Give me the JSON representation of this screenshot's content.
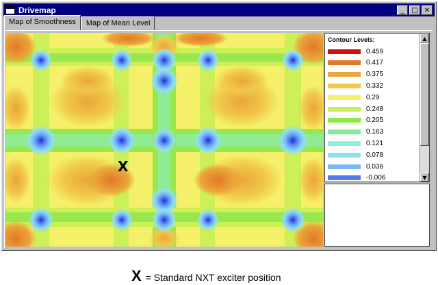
{
  "window": {
    "title": "Drivemap",
    "minimize": "_",
    "maximize": "□",
    "close": "✕"
  },
  "tabs": [
    {
      "label": "Map of Smoothness",
      "active": true
    },
    {
      "label": "Map of Mean Level",
      "active": false
    }
  ],
  "map": {
    "marker_label": "X"
  },
  "legend": {
    "title": "Contour Levels:",
    "levels": [
      {
        "value": "0.459",
        "color": "#d01010"
      },
      {
        "value": "0.417",
        "color": "#e37828"
      },
      {
        "value": "0.375",
        "color": "#eaa63a"
      },
      {
        "value": "0.332",
        "color": "#f1c84a"
      },
      {
        "value": "0.29",
        "color": "#f5f06a"
      },
      {
        "value": "0.248",
        "color": "#c9ef55"
      },
      {
        "value": "0.205",
        "color": "#8fe84a"
      },
      {
        "value": "0.163",
        "color": "#86eb9a"
      },
      {
        "value": "0.121",
        "color": "#8ff2d6"
      },
      {
        "value": "0.078",
        "color": "#8fdff0"
      },
      {
        "value": "0.036",
        "color": "#7ab8f5"
      },
      {
        "value": "-0.006",
        "color": "#4f7af0"
      }
    ]
  },
  "caption": {
    "marker": "X",
    "text": "= Standard NXT exciter position"
  }
}
